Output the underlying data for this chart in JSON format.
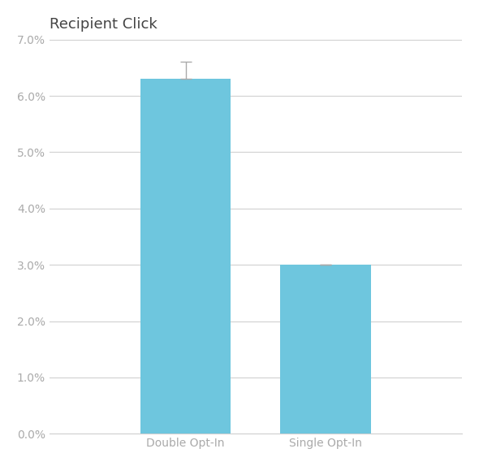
{
  "title": "Recipient Click",
  "categories": [
    "Double Opt-In",
    "Single Opt-In"
  ],
  "values": [
    0.063,
    0.03
  ],
  "bar_color": "#6EC6DE",
  "error_bar_double": 0.003,
  "ylim": [
    0,
    0.07
  ],
  "yticks": [
    0.0,
    0.01,
    0.02,
    0.03,
    0.04,
    0.05,
    0.06,
    0.07
  ],
  "background_color": "#ffffff",
  "grid_color": "#d0d0d0",
  "title_fontsize": 13,
  "tick_fontsize": 10,
  "bar_width": 0.22,
  "x_positions": [
    0.33,
    0.67
  ],
  "xlim": [
    0.0,
    1.0
  ],
  "title_color": "#444444",
  "tick_color": "#aaaaaa"
}
